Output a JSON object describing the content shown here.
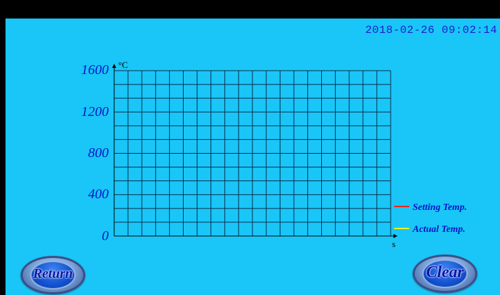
{
  "header": {
    "datetime": "2018-02-26 09:02:14"
  },
  "chart_data": {
    "type": "line",
    "y_unit": "°C",
    "x_unit": "s",
    "ylim": [
      0,
      1600
    ],
    "y_ticks": [
      "1600",
      "1200",
      "800",
      "400",
      "0"
    ],
    "grid": true,
    "legend_position": "right",
    "series": [
      {
        "name": "Setting Temp.",
        "color": "#e8241c",
        "values": []
      },
      {
        "name": "Actual Temp.",
        "color": "#f2f21e",
        "values": []
      }
    ]
  },
  "buttons": {
    "return_label": "Return",
    "clear_label": "Clear"
  }
}
